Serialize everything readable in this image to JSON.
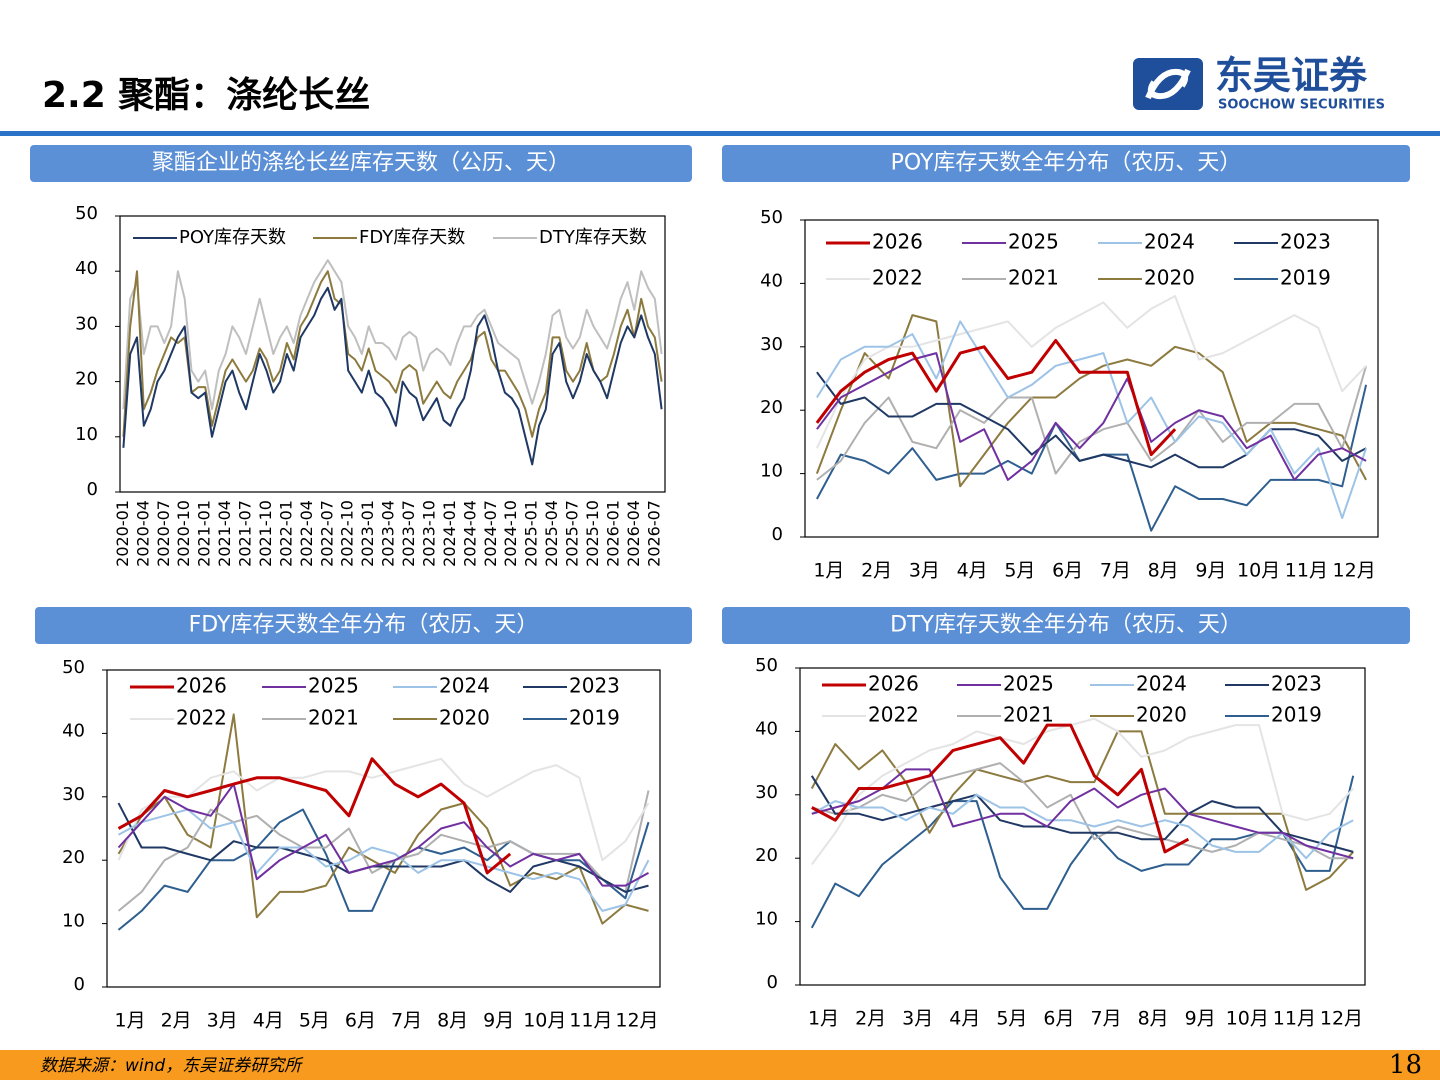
{
  "header": {
    "title": "2.2 聚酯：涤纶长丝",
    "logo_cn": "东吴证券",
    "logo_en": "SOOCHOW SECURITIES"
  },
  "footer": {
    "source": "数据来源：wind，东吴证券研究所",
    "page": "18"
  },
  "chart_data": [
    {
      "type": "line",
      "title": "聚酯企业的涤纶长丝库存天数（公历、天）",
      "ylim": [
        0,
        50
      ],
      "yticks": [
        0,
        10,
        20,
        30,
        40,
        50
      ],
      "categories": [
        "2020-01",
        null,
        null,
        "2020-04",
        null,
        null,
        "2020-07",
        null,
        null,
        "2020-10",
        null,
        null,
        "2021-01",
        null,
        null,
        "2021-04",
        null,
        null,
        "2021-07",
        null,
        null,
        "2021-10",
        null,
        null,
        "2022-01",
        null,
        null,
        "2022-04",
        null,
        null,
        "2022-07",
        null,
        null,
        "2022-10",
        null,
        null,
        "2023-01",
        null,
        null,
        "2023-04",
        null,
        null,
        "2023-07",
        null,
        null,
        "2023-10",
        null,
        null,
        "2024-01",
        null,
        null,
        "2024-04",
        null,
        null,
        "2024-07",
        null,
        null,
        "2024-10",
        null,
        null,
        "2025-01",
        null,
        null,
        "2025-04",
        null,
        null,
        "2025-07",
        null,
        null,
        "2025-10",
        null,
        null,
        "2026-01",
        null,
        null,
        "2026-04",
        null,
        null,
        "2026-07",
        null
      ],
      "series": [
        {
          "name": "POY库存天数",
          "color": "#1f3864",
          "values": [
            8,
            25,
            28,
            12,
            15,
            20,
            22,
            25,
            28,
            30,
            18,
            17,
            18,
            10,
            15,
            20,
            22,
            18,
            15,
            20,
            25,
            22,
            18,
            20,
            25,
            22,
            28,
            30,
            32,
            35,
            37,
            33,
            35,
            22,
            20,
            18,
            22,
            18,
            17,
            15,
            12,
            20,
            18,
            17,
            13,
            15,
            17,
            13,
            12,
            15,
            17,
            22,
            30,
            32,
            28,
            22,
            18,
            17,
            15,
            10,
            5,
            12,
            15,
            25,
            27,
            20,
            17,
            20,
            25,
            22,
            20,
            17,
            22,
            27,
            30,
            28,
            32,
            28,
            25,
            15
          ]
        },
        {
          "name": "FDY库存天数",
          "color": "#8c7a3f",
          "values": [
            10,
            30,
            40,
            15,
            18,
            22,
            25,
            28,
            27,
            28,
            18,
            19,
            19,
            12,
            17,
            22,
            24,
            22,
            20,
            22,
            26,
            24,
            20,
            22,
            27,
            24,
            30,
            32,
            35,
            38,
            40,
            35,
            34,
            25,
            24,
            22,
            26,
            22,
            21,
            20,
            18,
            22,
            23,
            22,
            16,
            18,
            20,
            18,
            17,
            20,
            22,
            24,
            28,
            29,
            24,
            22,
            22,
            20,
            18,
            15,
            10,
            15,
            18,
            28,
            28,
            22,
            20,
            22,
            27,
            22,
            20,
            21,
            25,
            30,
            33,
            28,
            35,
            30,
            28,
            20
          ]
        },
        {
          "name": "DTY库存天数",
          "color": "#bfbfbf",
          "values": [
            15,
            35,
            38,
            25,
            30,
            30,
            27,
            30,
            40,
            35,
            22,
            20,
            22,
            15,
            22,
            25,
            30,
            28,
            25,
            30,
            35,
            30,
            25,
            28,
            30,
            27,
            32,
            35,
            38,
            40,
            42,
            40,
            38,
            30,
            28,
            25,
            30,
            27,
            27,
            26,
            24,
            28,
            29,
            28,
            22,
            25,
            26,
            25,
            23,
            27,
            30,
            30,
            32,
            33,
            30,
            27,
            26,
            25,
            24,
            20,
            16,
            20,
            25,
            32,
            33,
            28,
            26,
            28,
            33,
            30,
            28,
            26,
            30,
            35,
            38,
            33,
            40,
            37,
            35,
            25
          ]
        }
      ]
    },
    {
      "type": "line",
      "title": "POY库存天数全年分布（农历、天）",
      "ylim": [
        0,
        50
      ],
      "yticks": [
        0,
        10,
        20,
        30,
        40,
        50
      ],
      "categories": [
        "1月",
        null,
        "2月",
        null,
        "3月",
        null,
        "4月",
        null,
        "5月",
        null,
        "6月",
        null,
        "7月",
        null,
        "8月",
        null,
        "9月",
        null,
        "10月",
        null,
        "11月",
        null,
        "12月",
        null
      ],
      "series": [
        {
          "name": "2026",
          "color": "#c00000",
          "values": [
            18,
            23,
            26,
            28,
            29,
            23,
            29,
            30,
            25,
            26,
            31,
            26,
            26,
            26,
            13,
            17,
            null,
            null,
            null,
            null,
            null,
            null,
            null,
            null
          ]
        },
        {
          "name": "2025",
          "color": "#7030a0",
          "values": [
            17,
            22,
            24,
            26,
            28,
            29,
            15,
            17,
            9,
            12,
            18,
            14,
            18,
            25,
            15,
            18,
            20,
            19,
            14,
            16,
            9,
            13,
            14,
            12
          ]
        },
        {
          "name": "2024",
          "color": "#9dc3e6",
          "values": [
            22,
            28,
            30,
            30,
            32,
            25,
            34,
            28,
            22,
            24,
            27,
            28,
            29,
            18,
            22,
            15,
            19,
            18,
            13,
            17,
            10,
            14,
            3,
            14
          ]
        },
        {
          "name": "2023",
          "color": "#1f3864",
          "values": [
            26,
            21,
            22,
            19,
            19,
            21,
            21,
            19,
            17,
            13,
            16,
            12,
            13,
            12,
            11,
            13,
            11,
            11,
            13,
            17,
            17,
            16,
            12,
            14
          ]
        },
        {
          "name": "2022",
          "color": "#e4e4e4",
          "values": [
            14,
            22,
            28,
            30,
            30,
            31,
            32,
            33,
            34,
            30,
            33,
            35,
            37,
            33,
            36,
            38,
            28,
            29,
            31,
            33,
            35,
            33,
            23,
            27
          ]
        },
        {
          "name": "2021",
          "color": "#b0b0b0",
          "values": [
            9,
            12,
            18,
            22,
            15,
            14,
            20,
            18,
            22,
            22,
            10,
            15,
            17,
            18,
            12,
            15,
            20,
            15,
            18,
            18,
            21,
            21,
            14,
            27
          ]
        },
        {
          "name": "2020",
          "color": "#8c7a3f",
          "values": [
            10,
            20,
            29,
            25,
            35,
            34,
            8,
            13,
            18,
            22,
            22,
            25,
            27,
            28,
            27,
            30,
            29,
            26,
            15,
            18,
            18,
            17,
            16,
            9
          ]
        },
        {
          "name": "2019",
          "color": "#2e5f8f",
          "values": [
            6,
            13,
            12,
            10,
            14,
            9,
            10,
            10,
            12,
            10,
            18,
            12,
            13,
            13,
            1,
            8,
            6,
            6,
            5,
            9,
            9,
            9,
            8,
            24
          ]
        }
      ]
    },
    {
      "type": "line",
      "title": "FDY库存天数全年分布（农历、天）",
      "ylim": [
        0,
        50
      ],
      "yticks": [
        0,
        10,
        20,
        30,
        40,
        50
      ],
      "categories": [
        "1月",
        null,
        "2月",
        null,
        "3月",
        null,
        "4月",
        null,
        "5月",
        null,
        "6月",
        null,
        "7月",
        null,
        "8月",
        null,
        "9月",
        null,
        "10月",
        null,
        "11月",
        null,
        "12月",
        null
      ],
      "series": [
        {
          "name": "2026",
          "color": "#c00000",
          "values": [
            25,
            27,
            31,
            30,
            31,
            32,
            33,
            33,
            32,
            31,
            27,
            36,
            32,
            30,
            32,
            29,
            18,
            21,
            null,
            null,
            null,
            null,
            null,
            null
          ]
        },
        {
          "name": "2025",
          "color": "#7030a0",
          "values": [
            22,
            26,
            30,
            28,
            27,
            32,
            17,
            20,
            22,
            24,
            18,
            19,
            20,
            22,
            25,
            26,
            22,
            19,
            21,
            20,
            21,
            16,
            16,
            18
          ]
        },
        {
          "name": "2024",
          "color": "#9dc3e6",
          "values": [
            24,
            26,
            27,
            28,
            25,
            26,
            18,
            22,
            22,
            19,
            20,
            22,
            21,
            18,
            20,
            20,
            19,
            18,
            17,
            18,
            17,
            12,
            13,
            20
          ]
        },
        {
          "name": "2023",
          "color": "#1f3864",
          "values": [
            29,
            22,
            22,
            21,
            20,
            23,
            22,
            22,
            21,
            20,
            18,
            19,
            19,
            19,
            19,
            20,
            17,
            15,
            19,
            20,
            19,
            17,
            15,
            16
          ]
        },
        {
          "name": "2022",
          "color": "#e4e4e4",
          "values": [
            20,
            28,
            30,
            30,
            33,
            34,
            31,
            33,
            33,
            34,
            34,
            33,
            34,
            35,
            36,
            32,
            30,
            32,
            34,
            35,
            33,
            20,
            23,
            29
          ]
        },
        {
          "name": "2021",
          "color": "#b0b0b0",
          "values": [
            12,
            15,
            20,
            22,
            28,
            26,
            27,
            24,
            22,
            22,
            25,
            18,
            20,
            21,
            24,
            23,
            22,
            23,
            21,
            21,
            21,
            17,
            15,
            31
          ]
        },
        {
          "name": "2020",
          "color": "#8c7a3f",
          "values": [
            21,
            27,
            30,
            24,
            22,
            43,
            11,
            15,
            15,
            16,
            22,
            20,
            18,
            24,
            28,
            29,
            25,
            16,
            18,
            17,
            19,
            10,
            13,
            12
          ]
        },
        {
          "name": "2019",
          "color": "#2e5f8f",
          "values": [
            9,
            12,
            16,
            15,
            20,
            20,
            22,
            26,
            28,
            21,
            12,
            12,
            20,
            22,
            21,
            22,
            20,
            23,
            21,
            20,
            20,
            17,
            14,
            26
          ]
        }
      ]
    },
    {
      "type": "line",
      "title": "DTY库存天数全年分布（农历、天）",
      "ylim": [
        0,
        50
      ],
      "yticks": [
        0,
        10,
        20,
        30,
        40,
        50
      ],
      "categories": [
        "1月",
        null,
        "2月",
        null,
        "3月",
        null,
        "4月",
        null,
        "5月",
        null,
        "6月",
        null,
        "7月",
        null,
        "8月",
        null,
        "9月",
        null,
        "10月",
        null,
        "11月",
        null,
        "12月",
        null
      ],
      "series": [
        {
          "name": "2026",
          "color": "#c00000",
          "values": [
            28,
            26,
            31,
            31,
            32,
            33,
            37,
            38,
            39,
            35,
            41,
            41,
            33,
            30,
            34,
            21,
            23,
            null,
            null,
            null,
            null,
            null,
            null,
            null
          ]
        },
        {
          "name": "2025",
          "color": "#7030a0",
          "values": [
            27,
            28,
            29,
            31,
            34,
            34,
            25,
            26,
            27,
            27,
            25,
            29,
            31,
            28,
            30,
            31,
            27,
            26,
            25,
            24,
            24,
            22,
            21,
            20
          ]
        },
        {
          "name": "2024",
          "color": "#9dc3e6",
          "values": [
            27,
            29,
            28,
            28,
            26,
            28,
            27,
            30,
            28,
            28,
            26,
            26,
            25,
            26,
            25,
            26,
            25,
            22,
            21,
            21,
            24,
            20,
            24,
            26
          ]
        },
        {
          "name": "2023",
          "color": "#1f3864",
          "values": [
            33,
            27,
            27,
            26,
            27,
            28,
            29,
            30,
            26,
            25,
            25,
            24,
            24,
            24,
            23,
            23,
            27,
            29,
            28,
            28,
            24,
            23,
            22,
            21
          ]
        },
        {
          "name": "2022",
          "color": "#e4e4e4",
          "values": [
            19,
            24,
            30,
            33,
            35,
            37,
            38,
            40,
            39,
            38,
            40,
            41,
            42,
            40,
            36,
            37,
            39,
            40,
            41,
            41,
            27,
            26,
            27,
            31
          ]
        },
        {
          "name": "2021",
          "color": "#b0b0b0",
          "values": [
            28,
            27,
            28,
            30,
            29,
            32,
            33,
            34,
            35,
            32,
            28,
            30,
            23,
            25,
            24,
            23,
            22,
            21,
            22,
            24,
            23,
            22,
            20,
            20
          ]
        },
        {
          "name": "2020",
          "color": "#8c7a3f",
          "values": [
            31,
            38,
            34,
            37,
            32,
            24,
            30,
            34,
            33,
            32,
            33,
            32,
            32,
            40,
            40,
            27,
            27,
            27,
            27,
            27,
            27,
            15,
            17,
            21
          ]
        },
        {
          "name": "2019",
          "color": "#2e5f8f",
          "values": [
            9,
            16,
            14,
            19,
            22,
            25,
            29,
            29,
            17,
            12,
            12,
            19,
            24,
            20,
            18,
            19,
            19,
            23,
            23,
            24,
            24,
            18,
            18,
            33
          ]
        }
      ]
    }
  ]
}
